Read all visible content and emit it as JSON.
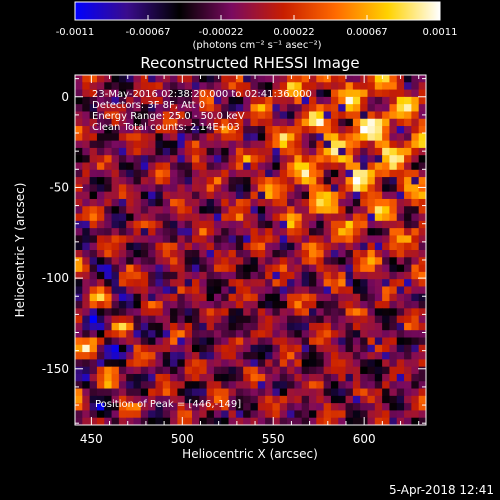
{
  "chart_data": {
    "type": "heatmap",
    "title": "Reconstructed RHESSI Image",
    "xlabel": "Heliocentric X (arcsec)",
    "ylabel": "Heliocentric Y (arcsec)",
    "xlim": [
      441,
      634
    ],
    "ylim": [
      -181,
      12
    ],
    "x_ticks": [
      450,
      500,
      550,
      600
    ],
    "y_ticks": [
      0,
      -50,
      -100,
      -150
    ],
    "annotations": {
      "time_range": "23-May-2016 02:38:20.000 to 02:41:36.000",
      "detectors": "Detectors: 3F 8F, Att 0",
      "energy": "Energy Range: 25.0 - 50.0 keV",
      "method": "Clean    Total counts: 2.14E+03"
    },
    "peak_label": "Position of Peak = [446,-149]",
    "peak_position": [
      446,
      -149
    ],
    "colorbar": {
      "min": -0.0011,
      "max": 0.0011,
      "tick_labels": [
        "-0.0011",
        "-0.00067",
        "-0.00022",
        "0.00022",
        "0.00067",
        "0.0011"
      ],
      "unit_label": "(photons cm⁻² s⁻¹ asec⁻²)",
      "colors": [
        "#0000ff",
        "#3a0c8c",
        "#000000",
        "#7a0a60",
        "#c81e00",
        "#ff6a00",
        "#ffd200",
        "#ffffff"
      ]
    },
    "grid_cells": 48,
    "footer_date": "5-Apr-2018 12:41"
  }
}
